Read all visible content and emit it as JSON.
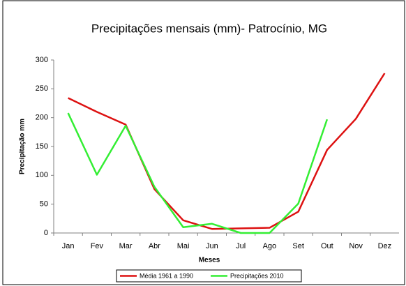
{
  "chart_data": {
    "type": "line",
    "title": "Precipitações mensais (mm)- Patrocínio, MG",
    "x_label": "Meses",
    "y_label": "Precipitação mm",
    "categories": [
      "Jan",
      "Fev",
      "Mar",
      "Abr",
      "Mai",
      "Jun",
      "Jul",
      "Ago",
      "Set",
      "Out",
      "Nov",
      "Dez"
    ],
    "series": [
      {
        "name": "Média 1961 a 1990",
        "color": "#dd1111",
        "values": [
          234,
          210,
          188,
          76,
          22,
          7,
          8,
          9,
          37,
          144,
          198,
          277
        ]
      },
      {
        "name": "Precipitações 2010",
        "color": "#33ee33",
        "values": [
          208,
          101,
          186,
          80,
          10,
          16,
          0,
          0,
          51,
          197,
          null,
          null
        ]
      }
    ],
    "ylim": [
      0,
      300
    ],
    "yticks": [
      0,
      50,
      100,
      150,
      200,
      250,
      300
    ],
    "legend": "bottom"
  }
}
